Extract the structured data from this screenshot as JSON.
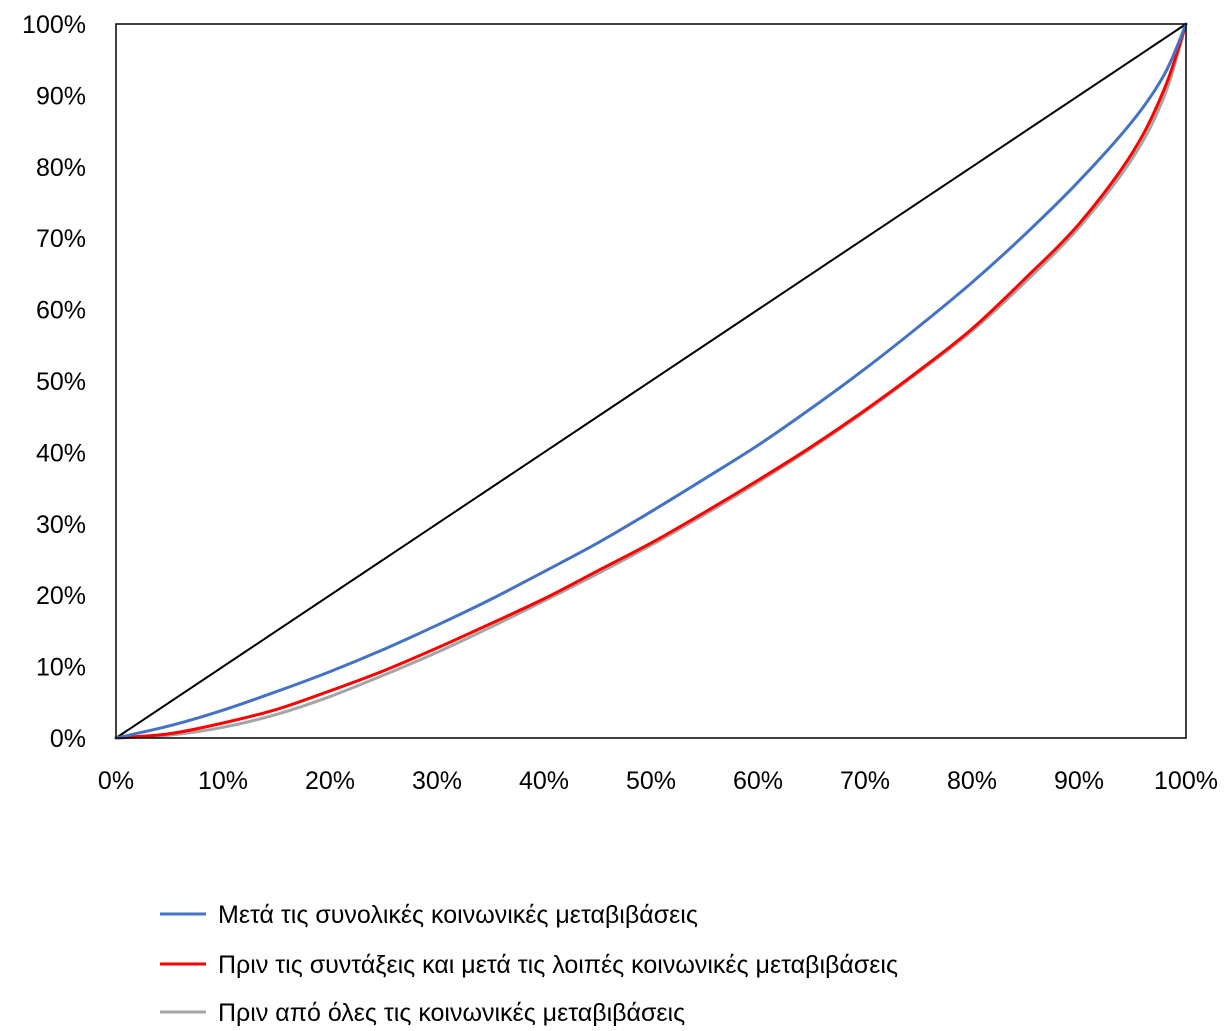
{
  "chart_data": {
    "type": "line",
    "title": "",
    "xlabel": "",
    "ylabel": "",
    "xlim": [
      0,
      100
    ],
    "ylim": [
      0,
      100
    ],
    "x_ticks": [
      "0%",
      "10%",
      "20%",
      "30%",
      "40%",
      "50%",
      "60%",
      "70%",
      "80%",
      "90%",
      "100%"
    ],
    "y_ticks": [
      "0%",
      "10%",
      "20%",
      "30%",
      "40%",
      "50%",
      "60%",
      "70%",
      "80%",
      "90%",
      "100%"
    ],
    "grid": false,
    "legend_position": "bottom",
    "equality_line": {
      "x": [
        0,
        100
      ],
      "y": [
        0,
        100
      ],
      "color": "#000000"
    },
    "series": [
      {
        "name": "Μετά τις συνολικές κοινωνικές μεταβιβάσεις",
        "color": "#4472C4",
        "x": [
          0,
          5,
          10,
          15,
          20,
          25,
          30,
          35,
          40,
          45,
          50,
          55,
          60,
          65,
          70,
          75,
          80,
          85,
          90,
          95,
          98,
          100
        ],
        "y": [
          0,
          1.7,
          3.9,
          6.5,
          9.3,
          12.4,
          15.8,
          19.4,
          23.3,
          27.3,
          31.7,
          36.3,
          41.0,
          46.2,
          51.7,
          57.6,
          63.8,
          70.6,
          78.0,
          86.4,
          93.0,
          100
        ]
      },
      {
        "name": "Πριν τις συντάξεις και μετά τις λοιπές κοινωνικές μεταβιβάσεις",
        "color": "#FF0000",
        "x": [
          0,
          5,
          10,
          15,
          20,
          25,
          30,
          35,
          40,
          45,
          50,
          55,
          60,
          65,
          70,
          75,
          80,
          85,
          90,
          95,
          98,
          100
        ],
        "y": [
          0,
          0.6,
          2.1,
          4.0,
          6.6,
          9.4,
          12.6,
          16.0,
          19.5,
          23.4,
          27.3,
          31.6,
          36.1,
          40.8,
          45.9,
          51.4,
          57.3,
          64.4,
          72.0,
          82.0,
          91.0,
          100
        ]
      },
      {
        "name": "Πριν από όλες τις κοινωνικές μεταβιβάσεις",
        "color": "#A5A5A5",
        "x": [
          0,
          5,
          10,
          15,
          20,
          25,
          30,
          35,
          40,
          45,
          50,
          55,
          60,
          65,
          70,
          75,
          80,
          85,
          90,
          95,
          98,
          100
        ],
        "y": [
          0,
          0.4,
          1.5,
          3.3,
          5.8,
          8.8,
          12.0,
          15.5,
          19.2,
          23.0,
          27.0,
          31.3,
          35.8,
          40.6,
          45.7,
          51.2,
          57.0,
          63.9,
          71.5,
          81.2,
          90.0,
          100
        ]
      }
    ]
  }
}
